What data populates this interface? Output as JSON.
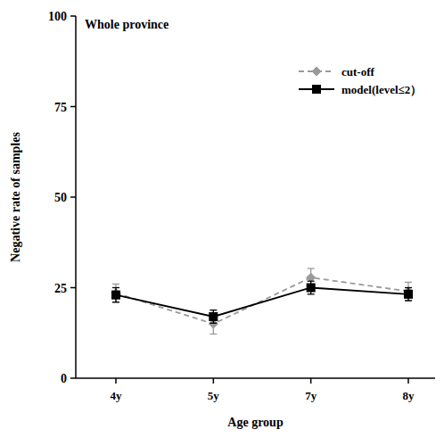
{
  "chart_data": {
    "type": "line",
    "title": "Whole province",
    "x_label": "Age group",
    "y_label": "Negative rate of samples",
    "categories": [
      "4y",
      "5y",
      "7y",
      "8y"
    ],
    "series": [
      {
        "name": "cut-off",
        "color": "#9a9a9a",
        "marker": "diamond",
        "line_style": "dashed",
        "values": [
          23.5,
          15.0,
          27.8,
          24.0
        ],
        "errors": [
          2.5,
          2.8,
          2.5,
          2.5
        ]
      },
      {
        "name": "model(level≤2）",
        "color": "#000000",
        "marker": "square",
        "line_style": "solid",
        "values": [
          23.0,
          17.0,
          25.0,
          23.2
        ],
        "errors": [
          2.0,
          1.8,
          1.8,
          1.8
        ]
      }
    ],
    "ylim": [
      0,
      100
    ],
    "yticks": [
      0,
      25,
      50,
      75,
      100
    ],
    "grid": false,
    "legend": "upper right"
  }
}
